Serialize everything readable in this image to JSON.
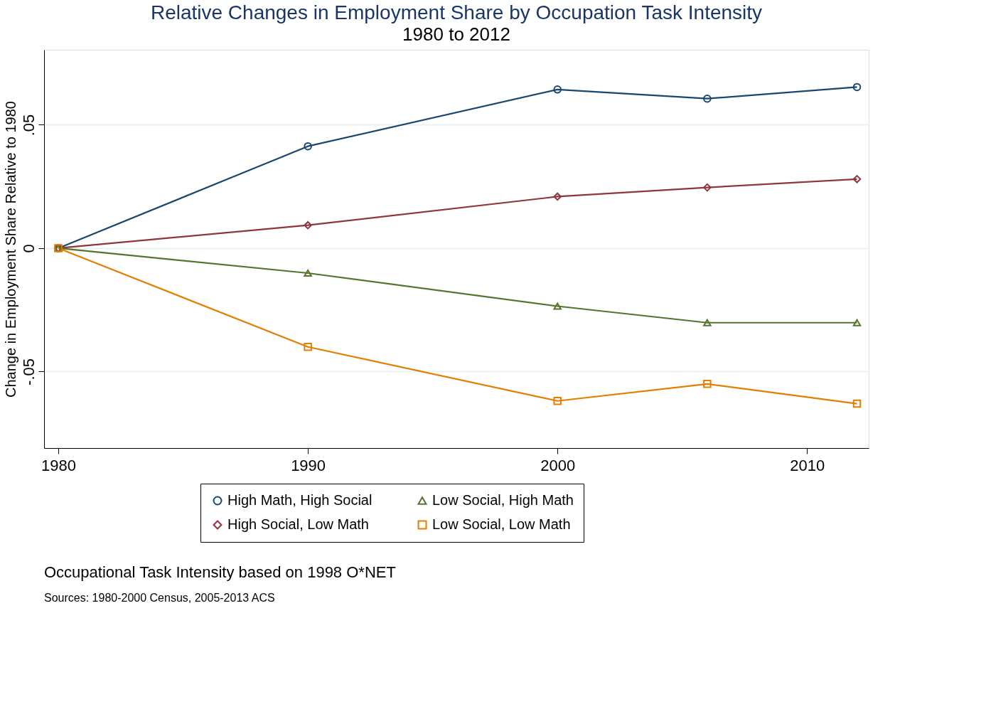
{
  "chart_data": {
    "type": "line",
    "title": "Relative Changes in Employment Share by Occupation Task Intensity",
    "subtitle": "1980 to 2012",
    "ylabel": "Change in Employment Share Relative to 1980",
    "x": [
      1980,
      1990,
      2000,
      2006,
      2012
    ],
    "series": [
      {
        "name": "High Math, High Social",
        "color": "#1a476f",
        "marker": "circle",
        "values": [
          0,
          0.0413,
          0.0643,
          0.0606,
          0.0653
        ]
      },
      {
        "name": "High Social, Low Math",
        "color": "#90353b",
        "marker": "diamond",
        "values": [
          0,
          0.0093,
          0.0209,
          0.0246,
          0.028
        ]
      },
      {
        "name": "Low Social, High Math",
        "color": "#55752f",
        "marker": "triangle",
        "values": [
          0,
          -0.0101,
          -0.0235,
          -0.0302,
          -0.0302
        ]
      },
      {
        "name": "Low Social, Low Math",
        "color": "#e37e00",
        "marker": "square",
        "values": [
          0,
          -0.04,
          -0.0619,
          -0.055,
          -0.063
        ]
      }
    ],
    "xlim": [
      1979.43,
      2012.47
    ],
    "xticks": [
      1980,
      1990,
      2000,
      2010
    ],
    "ylim": [
      -0.081,
      0.0804
    ],
    "yticks": [
      {
        "value": -0.05,
        "label": "-.05"
      },
      {
        "value": 0,
        "label": "0"
      },
      {
        "value": 0.05,
        "label": ".05"
      }
    ],
    "grid": "y",
    "legend": "bottom",
    "line_style": "solid",
    "annotations": [
      "Occupational Task Intensity based on 1998 O*NET",
      "Sources: 1980-2000 Census, 2005-2013 ACS"
    ]
  }
}
